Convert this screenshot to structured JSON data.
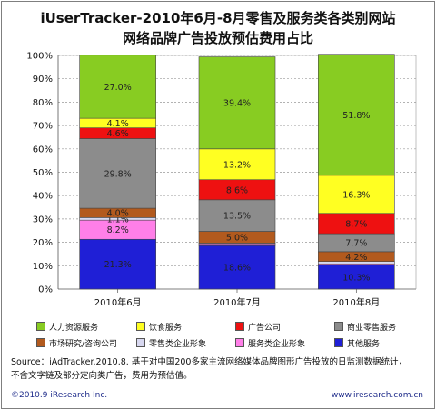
{
  "title": {
    "line1": "iUserTracker-2010年6月-8月零售及服务类各类别网站",
    "line2": "网络品牌广告投放预估费用占比"
  },
  "chart_data": {
    "type": "bar",
    "stacked": true,
    "percent_stacked": true,
    "categories": [
      "2010年6月",
      "2010年7月",
      "2010年8月"
    ],
    "y_ticks": [
      "0%",
      "10%",
      "20%",
      "30%",
      "40%",
      "50%",
      "60%",
      "70%",
      "80%",
      "90%",
      "100%"
    ],
    "ylim": [
      0,
      100
    ],
    "grid": true,
    "legend_position": "bottom",
    "series": [
      {
        "name": "其他服务",
        "color": "#1f1fd6",
        "values": [
          21.3,
          18.6,
          10.3
        ],
        "labels": [
          "21.3%",
          "18.6%",
          "10.3%"
        ]
      },
      {
        "name": "服务类企业形象",
        "color": "#ff7fe8",
        "values": [
          8.2,
          0.8,
          0.5
        ],
        "labels": [
          "8.2%",
          "",
          ""
        ]
      },
      {
        "name": "零售类企业形象",
        "color": "#d8d8f0",
        "values": [
          1.1,
          0.3,
          1.0
        ],
        "labels": [
          "1.1%",
          "",
          ""
        ]
      },
      {
        "name": "市场研究/咨询公司",
        "color": "#b25a1e",
        "values": [
          4.0,
          5.0,
          4.2
        ],
        "labels": [
          "4.0%",
          "5.0%",
          "4.2%"
        ]
      },
      {
        "name": "商业零售服务",
        "color": "#8c8c8c",
        "values": [
          29.8,
          13.5,
          7.7
        ],
        "labels": [
          "29.8%",
          "13.5%",
          "7.7%"
        ]
      },
      {
        "name": "广告公司",
        "color": "#ee1111",
        "values": [
          4.6,
          8.6,
          8.7
        ],
        "labels": [
          "4.6%",
          "8.6%",
          "8.7%"
        ]
      },
      {
        "name": "饮食服务",
        "color": "#ffff22",
        "values": [
          4.1,
          13.2,
          16.3
        ],
        "labels": [
          "4.1%",
          "13.2%",
          "16.3%"
        ]
      },
      {
        "name": "人力资源服务",
        "color": "#88cc22",
        "values": [
          27.0,
          39.4,
          51.8
        ],
        "labels": [
          "27.0%",
          "39.4%",
          "51.8%"
        ]
      }
    ]
  },
  "legend": {
    "row1": [
      "人力资源服务",
      "饮食服务",
      "广告公司",
      "商业零售服务"
    ],
    "row2": [
      "市场研究/咨询公司",
      "零售类企业形象",
      "服务类企业形象",
      "其他服务"
    ]
  },
  "source": {
    "line1": "Source：iAdTracker.2010.8. 基于对中国200多家主流网络媒体品牌图形广告投放的日监测数据统计，",
    "line2": "不含文字链及部分定向类广告，费用为预估值。"
  },
  "footer": {
    "copyright": "©2010.9 iResearch Inc.",
    "website": "www.iresearch.com.cn"
  }
}
